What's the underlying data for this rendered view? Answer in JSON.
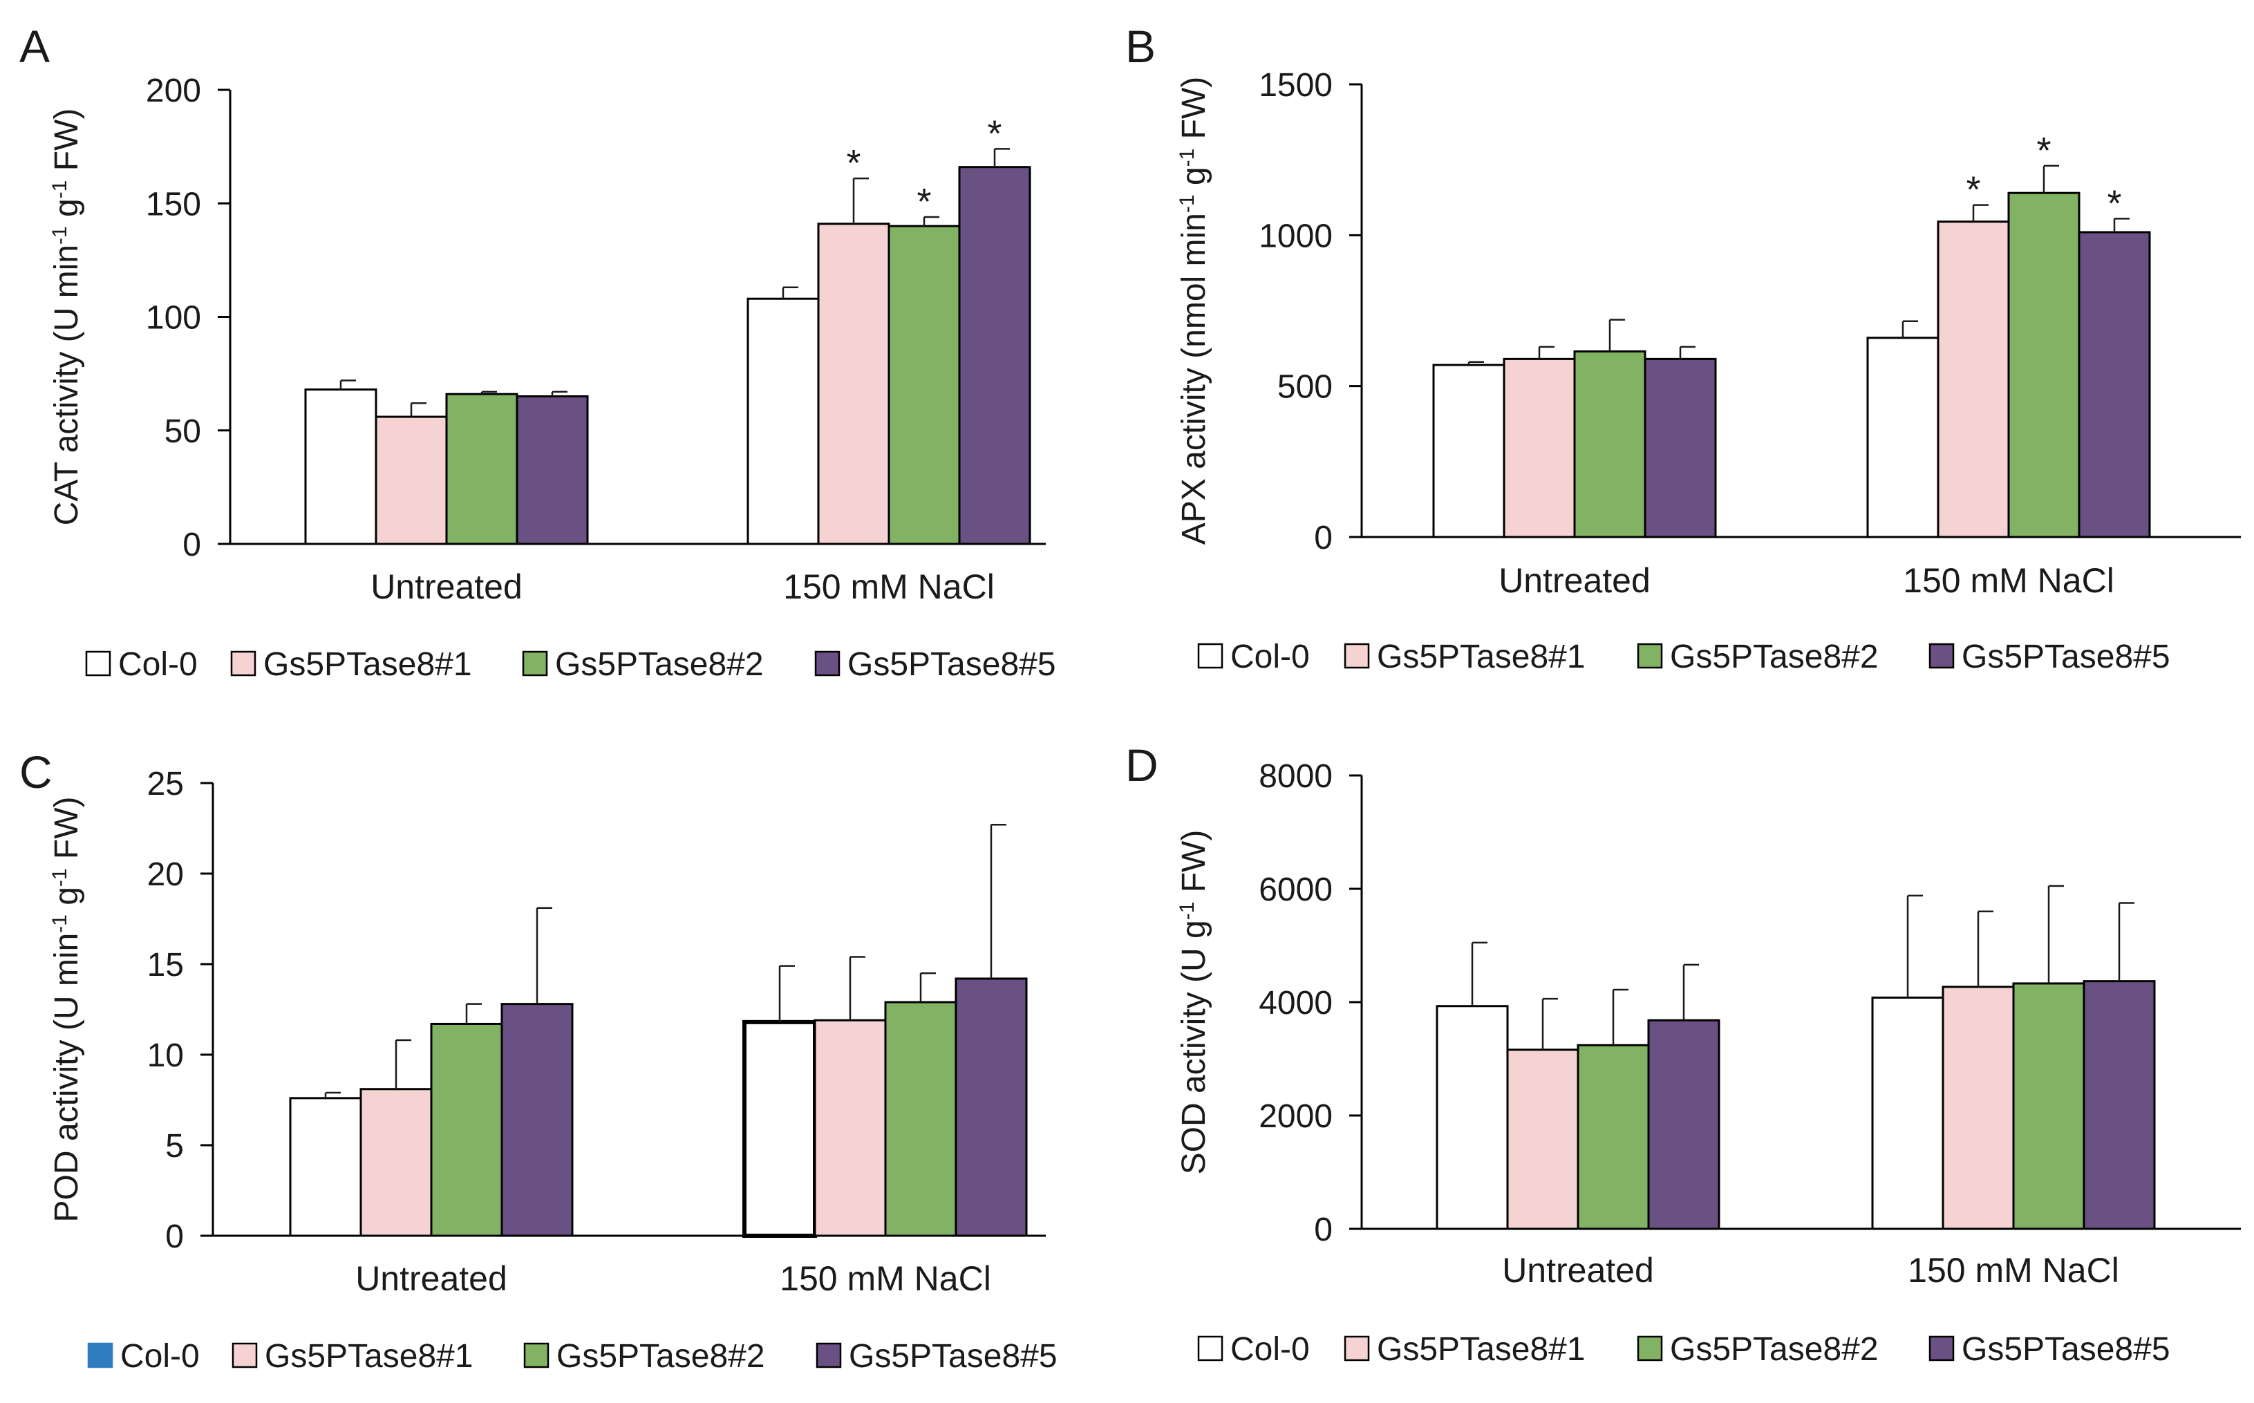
{
  "colors": {
    "Col-0": "#ffffff",
    "Gs5PTase8#1": "#f6d3d3",
    "Gs5PTase8#2": "#82b263",
    "Gs5PTase8#5": "#6a5183",
    "legend_C_col0": "#2e7cbf"
  },
  "chart_data": [
    {
      "panel": "A",
      "type": "bar",
      "ylabel_parts": [
        "CAT  activity (U min",
        "-1",
        " g",
        "-1",
        " FW)"
      ],
      "ylim": [
        0,
        200
      ],
      "yticks": [
        0,
        50,
        100,
        150,
        200
      ],
      "categories": [
        "Untreated",
        "150 mM NaCl"
      ],
      "series": [
        {
          "name": "Col-0",
          "values": [
            68,
            108
          ],
          "errors": [
            4,
            5
          ],
          "sig": [
            "",
            ""
          ]
        },
        {
          "name": "Gs5PTase8#1",
          "values": [
            56,
            141
          ],
          "errors": [
            6,
            20
          ],
          "sig": [
            "",
            "*"
          ]
        },
        {
          "name": "Gs5PTase8#2",
          "values": [
            66,
            140
          ],
          "errors": [
            1,
            4
          ],
          "sig": [
            "",
            "*"
          ]
        },
        {
          "name": "Gs5PTase8#5",
          "values": [
            65,
            166
          ],
          "errors": [
            2,
            8
          ],
          "sig": [
            "",
            "*"
          ]
        }
      ],
      "legend": [
        "Col-0",
        "Gs5PTase8#1",
        "Gs5PTase8#2",
        "Gs5PTase8#5"
      ]
    },
    {
      "panel": "B",
      "type": "bar",
      "ylabel_parts": [
        "APX activity (nmol min",
        "-1",
        " g",
        "-1",
        " FW)"
      ],
      "ylim": [
        0,
        1500
      ],
      "yticks": [
        0,
        500,
        1000,
        1500
      ],
      "categories": [
        "Untreated",
        "150 mM NaCl"
      ],
      "series": [
        {
          "name": "Col-0",
          "values": [
            570,
            660
          ],
          "errors": [
            10,
            55
          ],
          "sig": [
            "",
            ""
          ]
        },
        {
          "name": "Gs5PTase8#1",
          "values": [
            590,
            1045
          ],
          "errors": [
            40,
            55
          ],
          "sig": [
            "",
            "*"
          ]
        },
        {
          "name": "Gs5PTase8#2",
          "values": [
            615,
            1140
          ],
          "errors": [
            105,
            90
          ],
          "sig": [
            "",
            "*"
          ]
        },
        {
          "name": "Gs5PTase8#5",
          "values": [
            590,
            1010
          ],
          "errors": [
            40,
            45
          ],
          "sig": [
            "",
            "*"
          ]
        }
      ],
      "legend": [
        "Col-0",
        "Gs5PTase8#1",
        "Gs5PTase8#2",
        "Gs5PTase8#5"
      ]
    },
    {
      "panel": "C",
      "type": "bar",
      "ylabel_parts": [
        "POD activity (U min",
        "-1",
        " g",
        "-1",
        " FW)"
      ],
      "ylim": [
        0,
        25
      ],
      "yticks": [
        0,
        5,
        10,
        15,
        20,
        25
      ],
      "categories": [
        "Untreated",
        "150 mM NaCl"
      ],
      "series": [
        {
          "name": "Col-0",
          "values": [
            7.6,
            11.8
          ],
          "errors": [
            0.3,
            3.1
          ],
          "sig": [
            "",
            ""
          ]
        },
        {
          "name": "Gs5PTase8#1",
          "values": [
            8.1,
            11.9
          ],
          "errors": [
            2.7,
            3.5
          ],
          "sig": [
            "",
            ""
          ]
        },
        {
          "name": "Gs5PTase8#2",
          "values": [
            11.7,
            12.9
          ],
          "errors": [
            1.1,
            1.6
          ],
          "sig": [
            "",
            ""
          ]
        },
        {
          "name": "Gs5PTase8#5",
          "values": [
            12.8,
            14.2
          ],
          "errors": [
            5.3,
            8.5
          ],
          "sig": [
            "",
            ""
          ]
        }
      ],
      "legend": [
        "Col-0",
        "Gs5PTase8#1",
        "Gs5PTase8#2",
        "Gs5PTase8#5"
      ]
    },
    {
      "panel": "D",
      "type": "bar",
      "ylabel_parts": [
        "SOD activity (U g",
        "-1",
        " FW)"
      ],
      "ylim": [
        0,
        8000
      ],
      "yticks": [
        0,
        2000,
        4000,
        6000,
        8000
      ],
      "categories": [
        "Untreated",
        "150 mM NaCl"
      ],
      "series": [
        {
          "name": "Col-0",
          "values": [
            3930,
            4080
          ],
          "errors": [
            1120,
            1800
          ],
          "sig": [
            "",
            ""
          ]
        },
        {
          "name": "Gs5PTase8#1",
          "values": [
            3160,
            4270
          ],
          "errors": [
            900,
            1330
          ],
          "sig": [
            "",
            ""
          ]
        },
        {
          "name": "Gs5PTase8#2",
          "values": [
            3240,
            4330
          ],
          "errors": [
            980,
            1720
          ],
          "sig": [
            "",
            ""
          ]
        },
        {
          "name": "Gs5PTase8#5",
          "values": [
            3680,
            4370
          ],
          "errors": [
            980,
            1380
          ],
          "sig": [
            "",
            ""
          ]
        }
      ],
      "legend": [
        "Col-0",
        "Gs5PTase8#1",
        "Gs5PTase8#2",
        "Gs5PTase8#5"
      ]
    }
  ]
}
